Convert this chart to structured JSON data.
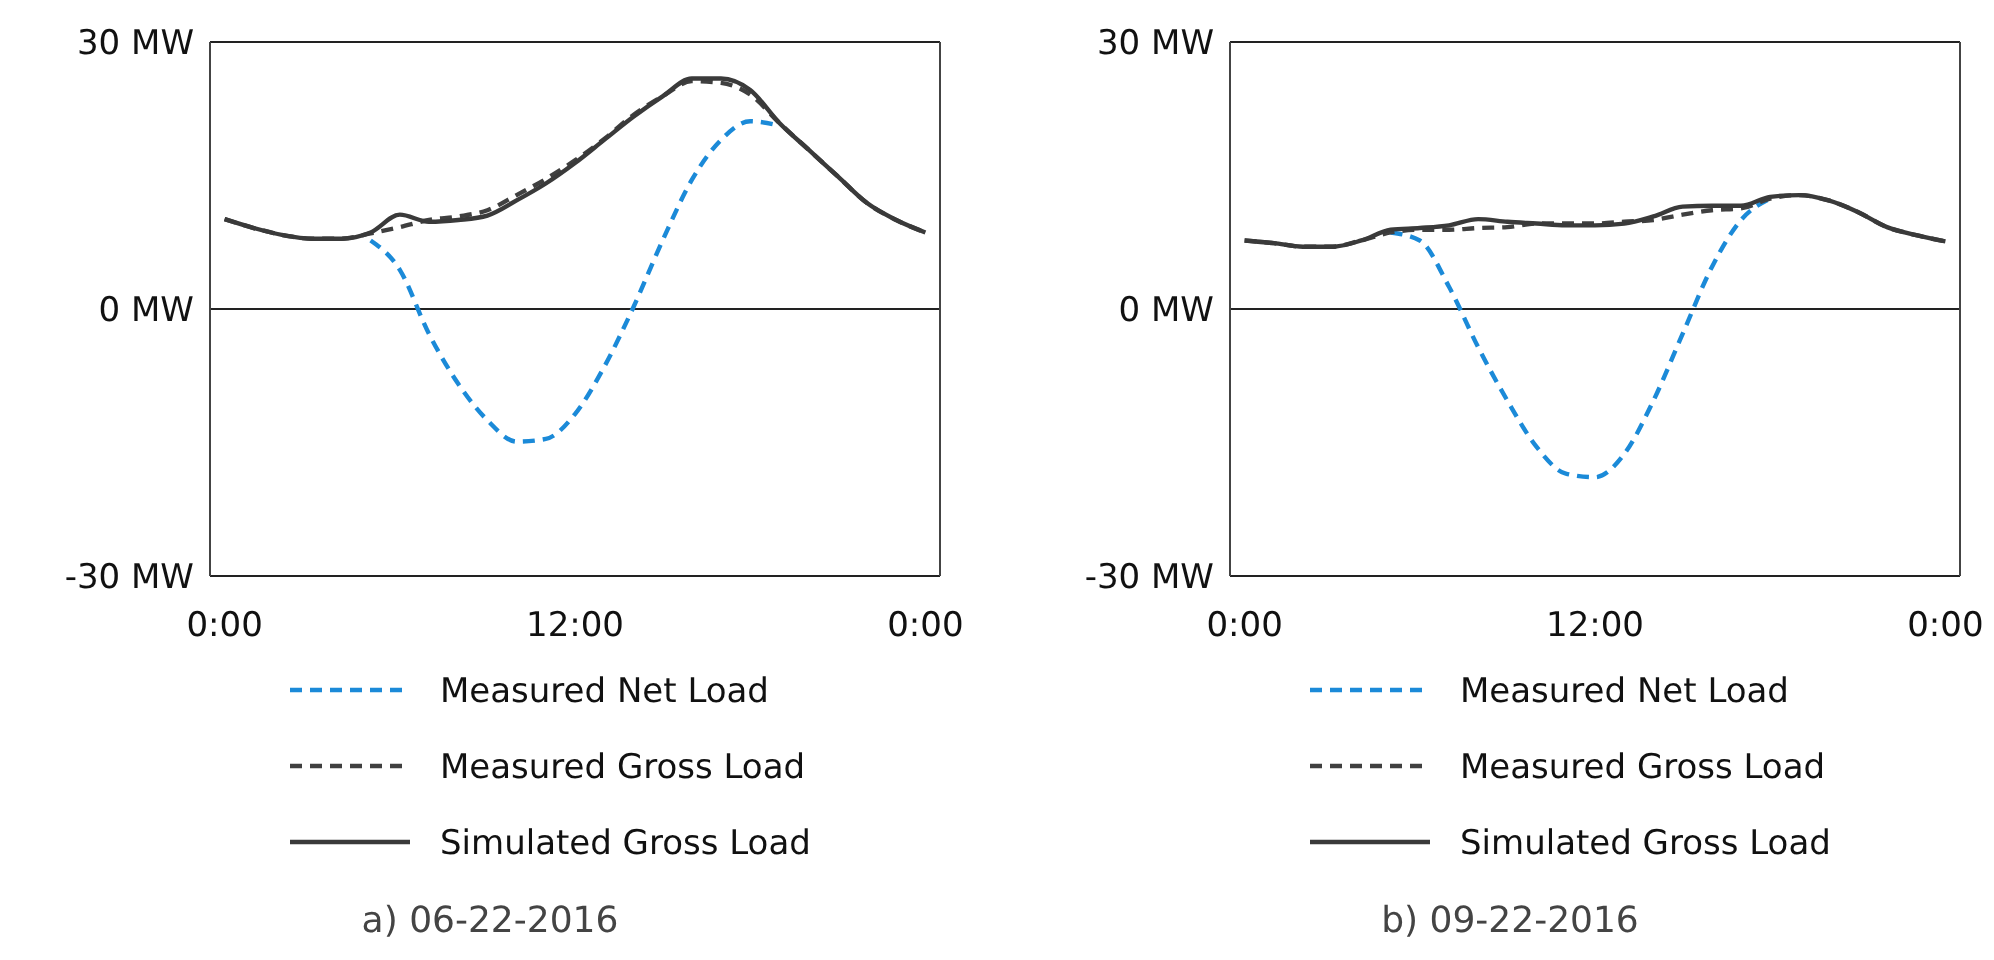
{
  "chart_data": [
    {
      "type": "line",
      "annotations": [
        "a) 06-22-2016"
      ],
      "x": [
        0,
        1,
        2,
        3,
        4,
        5,
        6,
        7,
        8,
        9,
        10,
        11,
        12,
        13,
        14,
        15,
        16,
        17,
        18,
        19,
        20,
        21,
        22,
        23,
        24
      ],
      "xlim": [
        -0.5,
        24.5
      ],
      "xticks": [
        {
          "value": 0,
          "label": "0:00"
        },
        {
          "value": 12,
          "label": "12:00"
        },
        {
          "value": 24,
          "label": "0:00"
        }
      ],
      "ylim": [
        -30,
        30
      ],
      "yticks": [
        {
          "value": -30,
          "label": "-30 MW"
        },
        {
          "value": 0,
          "label": "0 MW"
        },
        {
          "value": 30,
          "label": "30 MW"
        }
      ],
      "grid": "y",
      "legend": "bottom",
      "marker": "none",
      "series": [
        {
          "name": "Measured Net Load",
          "color": "#1b8ad8",
          "line_style": "dashed",
          "values": [
            null,
            null,
            null,
            null,
            null,
            7.7,
            4.4,
            -2.8,
            -8.4,
            -12.5,
            -14.9,
            -14.6,
            -11.8,
            -6.5,
            0.2,
            7.7,
            14.5,
            19.0,
            21.1,
            20.6,
            null,
            null,
            null,
            null,
            null
          ]
        },
        {
          "name": "Measured Gross Load",
          "color": "#404040",
          "line_style": "dashed",
          "values": [
            10.1,
            9.1,
            8.3,
            7.9,
            7.9,
            8.5,
            9.2,
            10.0,
            10.4,
            11.1,
            12.8,
            14.6,
            16.7,
            19.1,
            21.8,
            23.9,
            25.6,
            25.4,
            24.1,
            20.9,
            17.9,
            14.9,
            11.9,
            10.0,
            8.6
          ]
        },
        {
          "name": "Simulated Gross Load",
          "color": "#3a3a3a",
          "line_style": "solid",
          "values": [
            10.1,
            9.1,
            8.3,
            7.9,
            7.9,
            8.6,
            10.6,
            9.8,
            10.0,
            10.5,
            12.2,
            14.1,
            16.4,
            19.0,
            21.6,
            23.9,
            25.9,
            25.9,
            24.6,
            20.9,
            17.9,
            14.9,
            11.9,
            10.0,
            8.6
          ]
        }
      ]
    },
    {
      "type": "line",
      "annotations": [
        "b) 09-22-2016"
      ],
      "x": [
        0,
        1,
        2,
        3,
        4,
        5,
        6,
        7,
        8,
        9,
        10,
        11,
        12,
        13,
        14,
        15,
        16,
        17,
        18,
        19,
        20,
        21,
        22,
        23,
        24
      ],
      "xlim": [
        -0.5,
        24.5
      ],
      "xticks": [
        {
          "value": 0,
          "label": "0:00"
        },
        {
          "value": 12,
          "label": "12:00"
        },
        {
          "value": 24,
          "label": "0:00"
        }
      ],
      "ylim": [
        -30,
        30
      ],
      "yticks": [
        {
          "value": -30,
          "label": "-30 MW"
        },
        {
          "value": 0,
          "label": "0 MW"
        },
        {
          "value": 30,
          "label": "30 MW"
        }
      ],
      "grid": "y",
      "legend": "bottom",
      "marker": "none",
      "series": [
        {
          "name": "Measured Net Load",
          "color": "#1b8ad8",
          "line_style": "dashed",
          "values": [
            null,
            null,
            null,
            null,
            null,
            8.6,
            7.7,
            2.5,
            -4.3,
            -10.3,
            -15.5,
            -18.5,
            -18.9,
            -16.3,
            -10.3,
            -2.8,
            4.7,
            10.0,
            12.4,
            null,
            null,
            null,
            null,
            null,
            null
          ]
        },
        {
          "name": "Measured Gross Load",
          "color": "#404040",
          "line_style": "dashed",
          "values": [
            7.7,
            7.4,
            7.0,
            7.0,
            7.7,
            8.6,
            8.9,
            8.9,
            9.1,
            9.2,
            9.6,
            9.6,
            9.6,
            9.8,
            10.0,
            10.6,
            11.1,
            11.3,
            12.4,
            12.8,
            12.2,
            10.9,
            9.2,
            8.3,
            7.6
          ]
        },
        {
          "name": "Simulated Gross Load",
          "color": "#3a3a3a",
          "line_style": "solid",
          "values": [
            7.7,
            7.4,
            7.0,
            7.0,
            7.7,
            8.9,
            9.1,
            9.4,
            10.1,
            9.8,
            9.6,
            9.4,
            9.4,
            9.6,
            10.4,
            11.5,
            11.6,
            11.6,
            12.6,
            12.8,
            12.2,
            10.9,
            9.2,
            8.3,
            7.6
          ]
        }
      ]
    }
  ]
}
